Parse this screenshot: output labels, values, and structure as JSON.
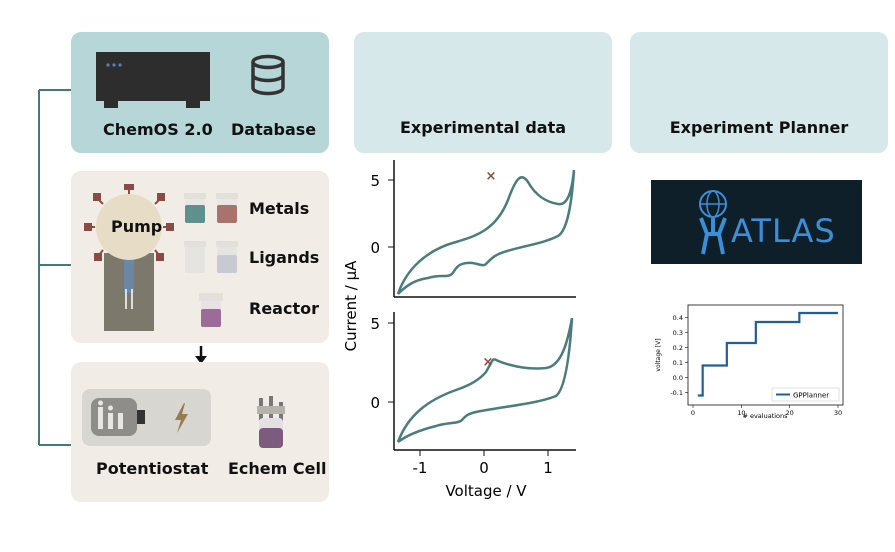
{
  "top_left": {
    "chemos_label": "ChemOS 2.0",
    "database_label": "Database"
  },
  "headers": {
    "experimental_data": "Experimental data",
    "experiment_planner": "Experiment Planner"
  },
  "pump_panel": {
    "pump_label": "Pump",
    "metals_label": "Metals",
    "ligands_label": "Ligands",
    "reactor_label": "Reactor"
  },
  "echem_panel": {
    "potentiostat_label": "Potentiostat",
    "echem_cell_label": "Echem Cell"
  },
  "cv_plot": {
    "y_label": "Current / μA",
    "x_label": "Voltage / V",
    "top_yticks": [
      "5",
      "0"
    ],
    "bottom_yticks": [
      "5",
      "0"
    ],
    "xticks": [
      "-1",
      "0",
      "1"
    ]
  },
  "planner": {
    "logo_text": "ATLAS"
  },
  "chart_data": {
    "type": "line",
    "ylabel": "voltage [V]",
    "xlabel": "# evaluations",
    "xlim": [
      0,
      30
    ],
    "ylim": [
      -0.15,
      0.45
    ],
    "xticks": [
      "0",
      "10",
      "20",
      "30"
    ],
    "yticks": [
      "0.4",
      "0.3",
      "0.2",
      "0.1",
      "0.0",
      "-0.1"
    ],
    "legend": "bottom-right",
    "series": [
      {
        "name": "GPPlanner",
        "x": [
          1,
          2,
          6,
          7,
          9,
          12,
          13,
          21,
          22,
          30
        ],
        "values": [
          -0.12,
          0.08,
          0.08,
          0.23,
          0.23,
          0.23,
          0.37,
          0.37,
          0.43,
          0.43
        ]
      }
    ]
  }
}
